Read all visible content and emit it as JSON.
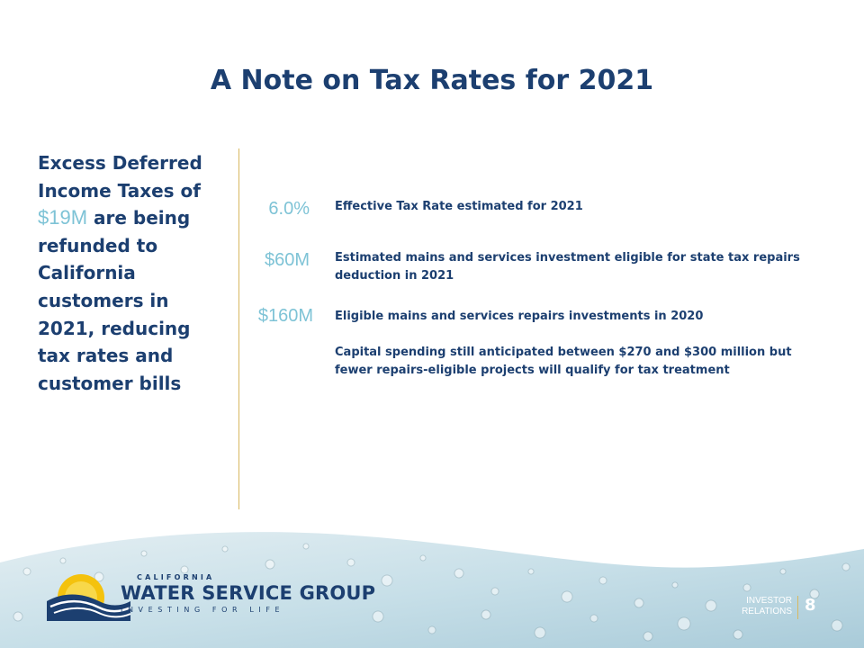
{
  "slide": {
    "title": "A Note on Tax Rates for 2021"
  },
  "callout": {
    "text_before": "Excess Deferred Income Taxes of ",
    "highlight": "$19M",
    "text_after": " are being refunded to California customers in 2021, reducing tax rates and customer bills"
  },
  "stats": [
    {
      "value": "6.0%",
      "text": "Effective Tax Rate estimated for 2021"
    },
    {
      "value": "$60M",
      "text": "Estimated mains and services investment eligible for state tax repairs deduction in 2021"
    },
    {
      "value": "$160M",
      "text": "Eligible mains and services repairs investments in 2020"
    },
    {
      "value": "",
      "text": "Capital spending still anticipated between $270 and $300 million but fewer repairs-eligible projects will qualify for tax treatment"
    }
  ],
  "footer": {
    "brand_top": "CALIFORNIA",
    "brand_main": "WATER SERVICE GROUP",
    "brand_tagline": "INVESTING FOR LIFE",
    "section_label_line1": "INVESTOR",
    "section_label_line2": "RELATIONS",
    "page_number": "8"
  },
  "colors": {
    "navy": "#1c3f70",
    "accent_blue": "#7ec3d6",
    "gold": "#d8b860"
  }
}
